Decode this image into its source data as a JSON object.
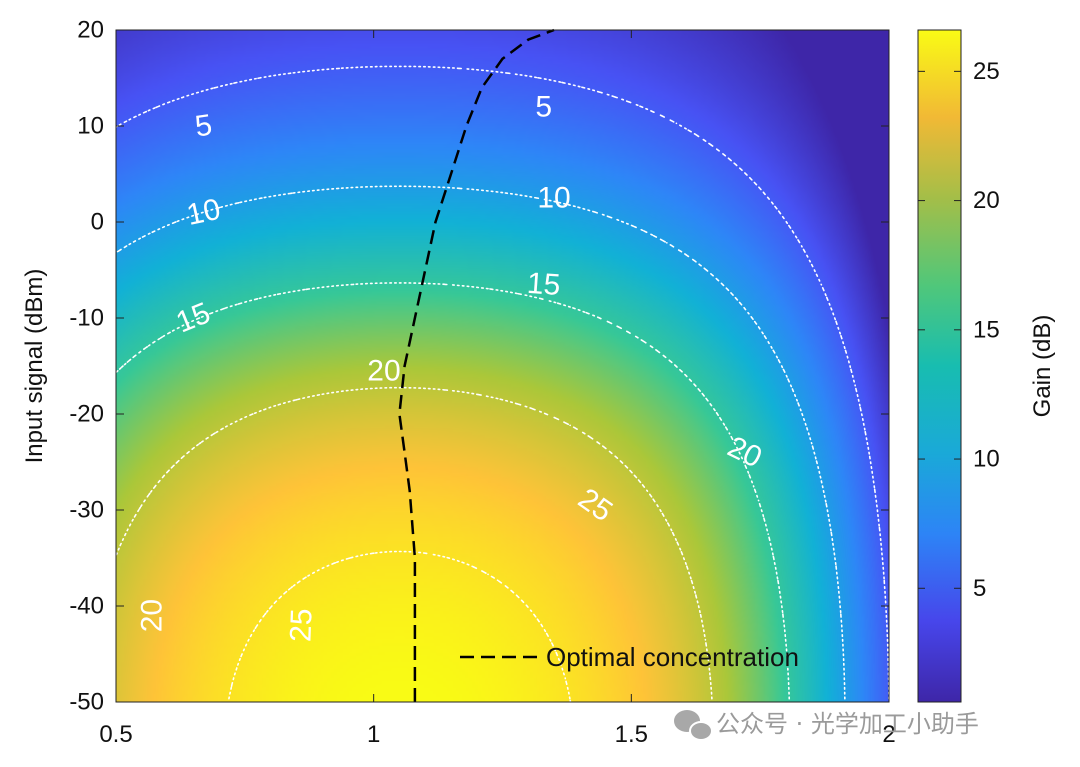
{
  "chart_data": {
    "type": "heatmap",
    "title": "",
    "xlabel": "",
    "ylabel": "Input signal (dBm)",
    "xlim": [
      0.5,
      2
    ],
    "ylim": [
      -50,
      20
    ],
    "x_ticks": [
      "0.5",
      "1",
      "1.5",
      "2"
    ],
    "y_ticks": [
      "20",
      "10",
      "0",
      "-10",
      "-20",
      "-30",
      "-40",
      "-50"
    ],
    "colorbar": {
      "label": "Gain (dB)",
      "range": [
        0.6,
        26.6
      ],
      "ticks": [
        "25",
        "20",
        "15",
        "10",
        "5"
      ],
      "colormap": "parula"
    },
    "contour_levels": [
      5,
      10,
      15,
      20,
      25
    ],
    "contour_labels": [
      "5",
      "5",
      "10",
      "10",
      "15",
      "15",
      "20",
      "20",
      "20",
      "25",
      "25"
    ],
    "optimal_concentration": {
      "x": [
        1.08,
        1.08,
        1.07,
        1.06,
        1.05,
        1.06,
        1.08,
        1.1,
        1.12,
        1.15,
        1.18,
        1.21,
        1.25,
        1.3,
        1.35
      ],
      "y": [
        -50,
        -35,
        -28,
        -24,
        -20,
        -15,
        -10,
        -5,
        0,
        5,
        10,
        14,
        17,
        19,
        20
      ]
    },
    "legend": {
      "entries": [
        "Optimal concentration"
      ],
      "placement": "bottom-right"
    },
    "colors": {
      "contour": "#ffffff",
      "optimal_line": "#000000"
    }
  },
  "watermark": {
    "text": "公众号 · 光学加工小助手",
    "icon": "wechat-icon"
  }
}
